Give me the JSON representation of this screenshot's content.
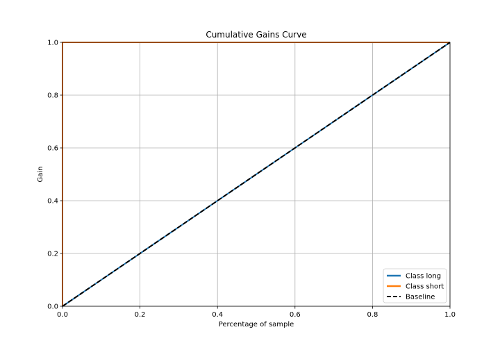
{
  "chart_data": {
    "type": "line",
    "title": "Cumulative Gains Curve",
    "xlabel": "Percentage of sample",
    "ylabel": "Gain",
    "xlim": [
      0.0,
      1.0
    ],
    "ylim": [
      0.0,
      1.0
    ],
    "xticks": [
      "0.0",
      "0.2",
      "0.4",
      "0.6",
      "0.8",
      "1.0"
    ],
    "yticks": [
      "0.0",
      "0.2",
      "0.4",
      "0.6",
      "0.8",
      "1.0"
    ],
    "grid": true,
    "legend_position": "lower-right",
    "series": [
      {
        "name": "Class long",
        "color": "#1f77b4",
        "style": "solid",
        "x": [
          0.0,
          1.0
        ],
        "y": [
          0.0,
          1.0
        ]
      },
      {
        "name": "Class short",
        "color": "#ff7f0e",
        "style": "solid",
        "x": [
          0.0,
          0.0,
          1.0
        ],
        "y": [
          0.0,
          1.0,
          1.0
        ]
      },
      {
        "name": "Baseline",
        "color": "#000000",
        "style": "dashed",
        "x": [
          0.0,
          1.0
        ],
        "y": [
          0.0,
          1.0
        ]
      }
    ]
  }
}
